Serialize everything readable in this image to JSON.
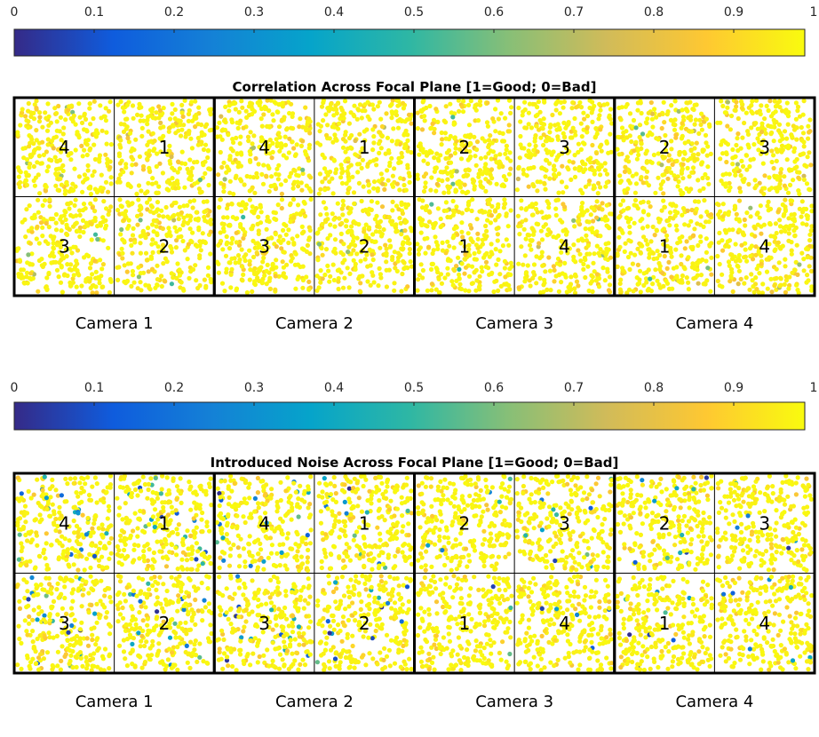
{
  "chart_data": [
    {
      "type": "scatter",
      "title": "Correlation Across Focal Plane [1=Good; 0=Bad]",
      "colorbar": {
        "colormap": "parula",
        "range": [
          0,
          1
        ],
        "tick_labels": [
          "0",
          "0.1",
          "0.2",
          "0.3",
          "0.4",
          "0.5",
          "0.6",
          "0.7",
          "0.8",
          "0.9",
          "1"
        ],
        "colors": [
          "#352a87",
          "#0f5cdd",
          "#1481d6",
          "#06a4ca",
          "#2eb7a4",
          "#87bf77",
          "#d1bb59",
          "#fec832",
          "#f9fb0e"
        ]
      },
      "cameras": [
        {
          "label": "Camera 1",
          "ccd_labels": [
            "4",
            "1",
            "3",
            "2"
          ],
          "bad_point_fraction": 0.04
        },
        {
          "label": "Camera 2",
          "ccd_labels": [
            "4",
            "1",
            "3",
            "2"
          ],
          "bad_point_fraction": 0.03
        },
        {
          "label": "Camera 3",
          "ccd_labels": [
            "2",
            "3",
            "1",
            "4"
          ],
          "bad_point_fraction": 0.02
        },
        {
          "label": "Camera 4",
          "ccd_labels": [
            "2",
            "3",
            "1",
            "4"
          ],
          "bad_point_fraction": 0.04
        }
      ],
      "value_range_observed": [
        0.5,
        1.0
      ],
      "typical_value": 1.0
    },
    {
      "type": "scatter",
      "title": "Introduced Noise Across Focal Plane [1=Good; 0=Bad]",
      "colorbar": {
        "colormap": "parula",
        "range": [
          0,
          1
        ],
        "tick_labels": [
          "0",
          "0.1",
          "0.2",
          "0.3",
          "0.4",
          "0.5",
          "0.6",
          "0.7",
          "0.8",
          "0.9",
          "1"
        ],
        "colors": [
          "#352a87",
          "#0f5cdd",
          "#1481d6",
          "#06a4ca",
          "#2eb7a4",
          "#87bf77",
          "#d1bb59",
          "#fec832",
          "#f9fb0e"
        ]
      },
      "cameras": [
        {
          "label": "Camera 1",
          "ccd_labels": [
            "4",
            "1",
            "3",
            "2"
          ],
          "bad_point_fraction": 0.08
        },
        {
          "label": "Camera 2",
          "ccd_labels": [
            "4",
            "1",
            "3",
            "2"
          ],
          "bad_point_fraction": 0.07
        },
        {
          "label": "Camera 3",
          "ccd_labels": [
            "2",
            "3",
            "1",
            "4"
          ],
          "bad_point_fraction": 0.02
        },
        {
          "label": "Camera 4",
          "ccd_labels": [
            "2",
            "3",
            "1",
            "4"
          ],
          "bad_point_fraction": 0.03
        }
      ],
      "value_range_observed": [
        0.0,
        1.0
      ],
      "typical_value": 1.0
    }
  ]
}
